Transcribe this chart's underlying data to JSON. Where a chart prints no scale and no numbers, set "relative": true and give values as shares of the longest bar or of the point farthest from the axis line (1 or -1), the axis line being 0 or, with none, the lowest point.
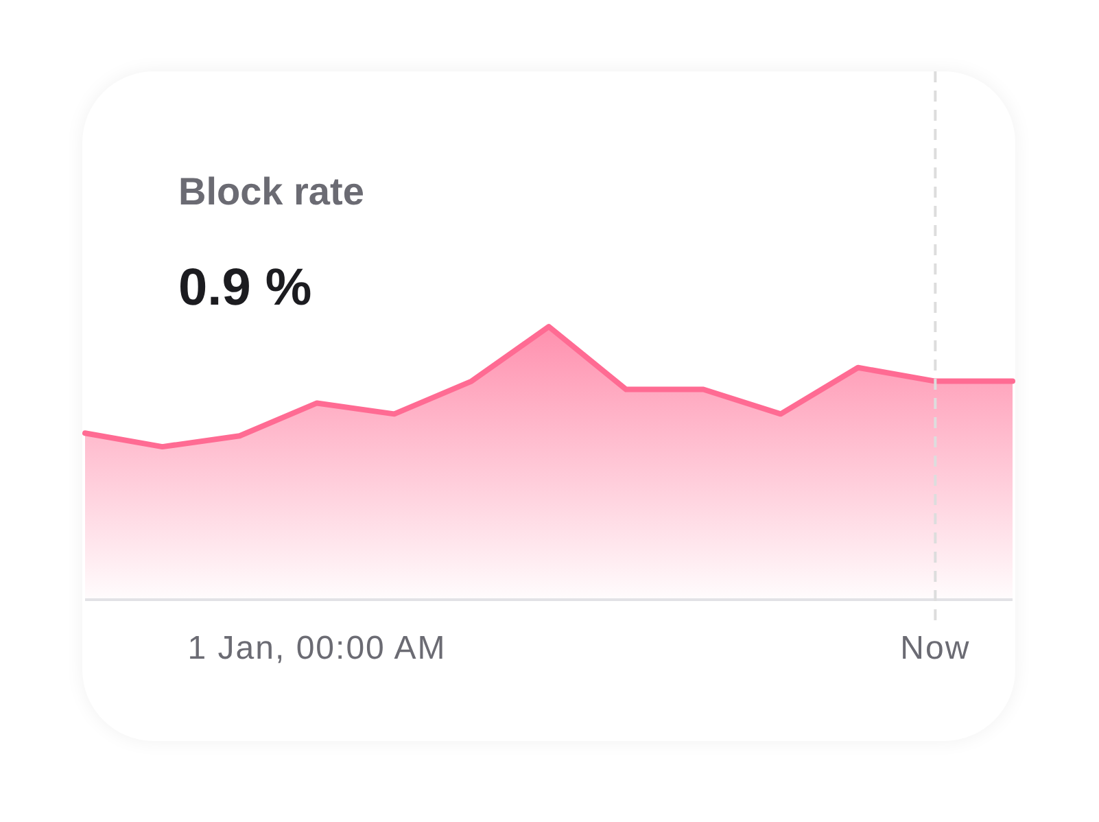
{
  "chart_data": {
    "type": "area",
    "title": "Block rate",
    "subtitle": "0.9 %",
    "relative": true,
    "color": "#ff6b93",
    "categories": [
      null,
      null,
      null,
      "1 Jan, 00:00 AM",
      null,
      null,
      null,
      null,
      null,
      null,
      null,
      "Now",
      null
    ],
    "values": [
      0.61,
      0.56,
      0.6,
      0.72,
      0.68,
      0.8,
      1,
      0.77,
      0.77,
      0.68,
      0.85,
      0.8,
      0.8
    ],
    "ref_lines": [
      {
        "axis": "x",
        "value": "Now",
        "color": "#dddddd",
        "line_style": "dashed"
      }
    ]
  }
}
